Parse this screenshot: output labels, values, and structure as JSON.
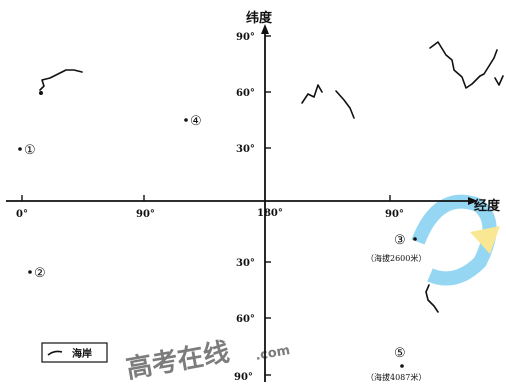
{
  "axes": {
    "y_title": "纬度",
    "x_title": "经度",
    "lat_north": [
      "90°",
      "60°",
      "30°"
    ],
    "lat_south": [
      "30°",
      "60°",
      "90°"
    ],
    "lon": [
      "0°",
      "90°",
      "180°",
      "90°"
    ]
  },
  "points": [
    {
      "id": "1",
      "label": "①"
    },
    {
      "id": "2",
      "label": "②"
    },
    {
      "id": "3",
      "label": "③",
      "note": "（海拔2600米）"
    },
    {
      "id": "4",
      "label": "④"
    },
    {
      "id": "5",
      "label": "⑤",
      "note": "（海拔4087米）"
    }
  ],
  "legend": {
    "label": "海岸"
  },
  "watermark": {
    "text": "高考在线",
    "subtext": ".com",
    "color": "#3fb6e8",
    "accent": "#f5d33c"
  },
  "icons": [
    "coastline-legend-icon"
  ]
}
